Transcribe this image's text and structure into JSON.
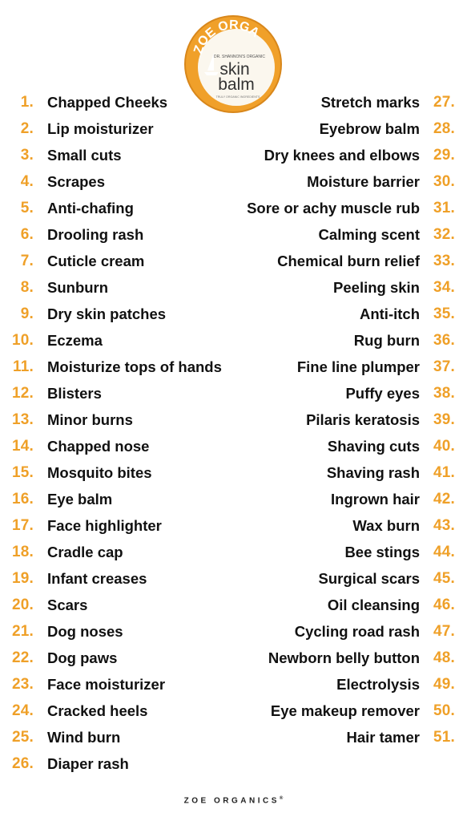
{
  "colors": {
    "number": "#efa028",
    "text": "#111111",
    "tin_orange": "#f5a623"
  },
  "product": {
    "brand_arc": "ZOE ORGA",
    "subtitle": "DR. SHANNON'S ORGANIC",
    "name_line1": "skin",
    "name_line2": "balm",
    "fine_print": "TRULY ORGANIC INGREDIENTS",
    "icon": "sailboat-logo-icon"
  },
  "left_items": [
    {
      "num": "1.",
      "label": "Chapped Cheeks"
    },
    {
      "num": "2.",
      "label": "Lip moisturizer"
    },
    {
      "num": "3.",
      "label": "Small cuts"
    },
    {
      "num": "4.",
      "label": "Scrapes"
    },
    {
      "num": "5.",
      "label": "Anti-chafing"
    },
    {
      "num": "6.",
      "label": "Drooling rash"
    },
    {
      "num": "7.",
      "label": "Cuticle cream"
    },
    {
      "num": "8.",
      "label": "Sunburn"
    },
    {
      "num": "9.",
      "label": "Dry skin patches"
    },
    {
      "num": "10.",
      "label": "Eczema"
    },
    {
      "num": "11.",
      "label": "Moisturize tops of hands"
    },
    {
      "num": "12.",
      "label": "Blisters"
    },
    {
      "num": "13.",
      "label": "Minor burns"
    },
    {
      "num": "14.",
      "label": "Chapped nose"
    },
    {
      "num": "15.",
      "label": "Mosquito bites"
    },
    {
      "num": "16.",
      "label": "Eye balm"
    },
    {
      "num": "17.",
      "label": "Face highlighter"
    },
    {
      "num": "18.",
      "label": "Cradle cap"
    },
    {
      "num": "19.",
      "label": "Infant creases"
    },
    {
      "num": "20.",
      "label": "Scars"
    },
    {
      "num": "21.",
      "label": "Dog noses"
    },
    {
      "num": "22.",
      "label": "Dog paws"
    },
    {
      "num": "23.",
      "label": "Face moisturizer"
    },
    {
      "num": "24.",
      "label": "Cracked heels"
    },
    {
      "num": "25.",
      "label": "Wind burn"
    },
    {
      "num": "26.",
      "label": "Diaper rash"
    }
  ],
  "right_items": [
    {
      "num": "27.",
      "label": "Stretch marks"
    },
    {
      "num": "28.",
      "label": "Eyebrow balm"
    },
    {
      "num": "29.",
      "label": "Dry knees and elbows"
    },
    {
      "num": "30.",
      "label": "Moisture barrier"
    },
    {
      "num": "31.",
      "label": "Sore or achy muscle rub"
    },
    {
      "num": "32.",
      "label": "Calming scent"
    },
    {
      "num": "33.",
      "label": "Chemical burn relief"
    },
    {
      "num": "34.",
      "label": "Peeling skin"
    },
    {
      "num": "35.",
      "label": "Anti-itch"
    },
    {
      "num": "36.",
      "label": "Rug burn"
    },
    {
      "num": "37.",
      "label": "Fine line plumper"
    },
    {
      "num": "38.",
      "label": "Puffy eyes"
    },
    {
      "num": "39.",
      "label": "Pilaris keratosis"
    },
    {
      "num": "40.",
      "label": "Shaving cuts"
    },
    {
      "num": "41.",
      "label": "Shaving rash"
    },
    {
      "num": "42.",
      "label": "Ingrown hair"
    },
    {
      "num": "43.",
      "label": "Wax burn"
    },
    {
      "num": "44.",
      "label": "Bee stings"
    },
    {
      "num": "45.",
      "label": "Surgical scars"
    },
    {
      "num": "46.",
      "label": "Oil cleansing"
    },
    {
      "num": "47.",
      "label": "Cycling road rash"
    },
    {
      "num": "48.",
      "label": "Newborn belly button"
    },
    {
      "num": "49.",
      "label": "Electrolysis"
    },
    {
      "num": "50.",
      "label": "Eye makeup remover"
    },
    {
      "num": "51.",
      "label": "Hair tamer"
    }
  ],
  "footer": {
    "brand": "ZOE ORGANICS",
    "mark": "®"
  }
}
